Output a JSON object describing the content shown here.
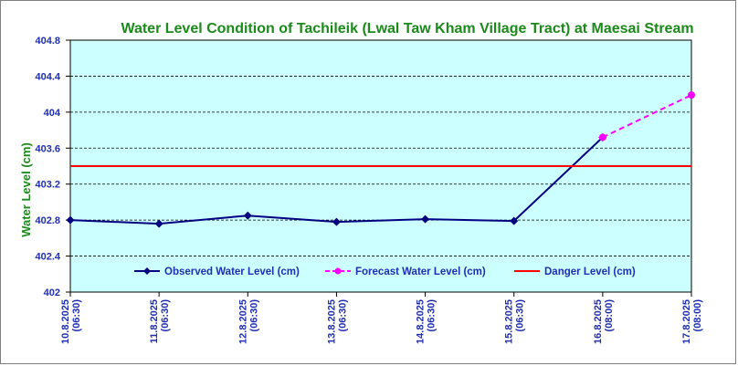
{
  "chart_data": {
    "type": "line",
    "title": "Water Level Condition of Tachileik (Lwal Taw Kham Village Tract) at Maesai Stream",
    "xlabel": "",
    "ylabel": "Water Level (cm)",
    "ylim": [
      402,
      404.8
    ],
    "yticks": [
      "402",
      "402.4",
      "402.8",
      "403.2",
      "403.6",
      "404",
      "404.4",
      "404.8"
    ],
    "grid": true,
    "categories": [
      [
        "10.8.2025",
        "(06:30)"
      ],
      [
        "11.8.2025",
        "(06:30)"
      ],
      [
        "12.8.2025",
        "(06:30)"
      ],
      [
        "13.8.2025",
        "(06:30)"
      ],
      [
        "14.8.2025",
        "(06:30)"
      ],
      [
        "15.8.2025",
        "(06:30)"
      ],
      [
        "16.8.2025",
        "(08:00)"
      ],
      [
        "17.8.2025",
        "(08:00)"
      ]
    ],
    "series": [
      {
        "name": "Observed Water Level (cm)",
        "color": "#000080",
        "marker": "diamond",
        "values": [
          402.8,
          402.76,
          402.85,
          402.78,
          402.81,
          402.79,
          403.72,
          null
        ]
      },
      {
        "name": "Forecast Water Level (cm)",
        "color": "#ff00ff",
        "marker": "circle",
        "dashed": true,
        "values": [
          null,
          null,
          null,
          null,
          null,
          null,
          403.72,
          404.19
        ]
      },
      {
        "name": "Danger Level (cm)",
        "color": "#ff0000",
        "constant": 403.4
      }
    ],
    "legend_position": "bottom-inside"
  },
  "colors": {
    "plot_bg": "#ccffff",
    "axis_text": "#1f2fb0",
    "title_text": "#1a8a1a"
  }
}
